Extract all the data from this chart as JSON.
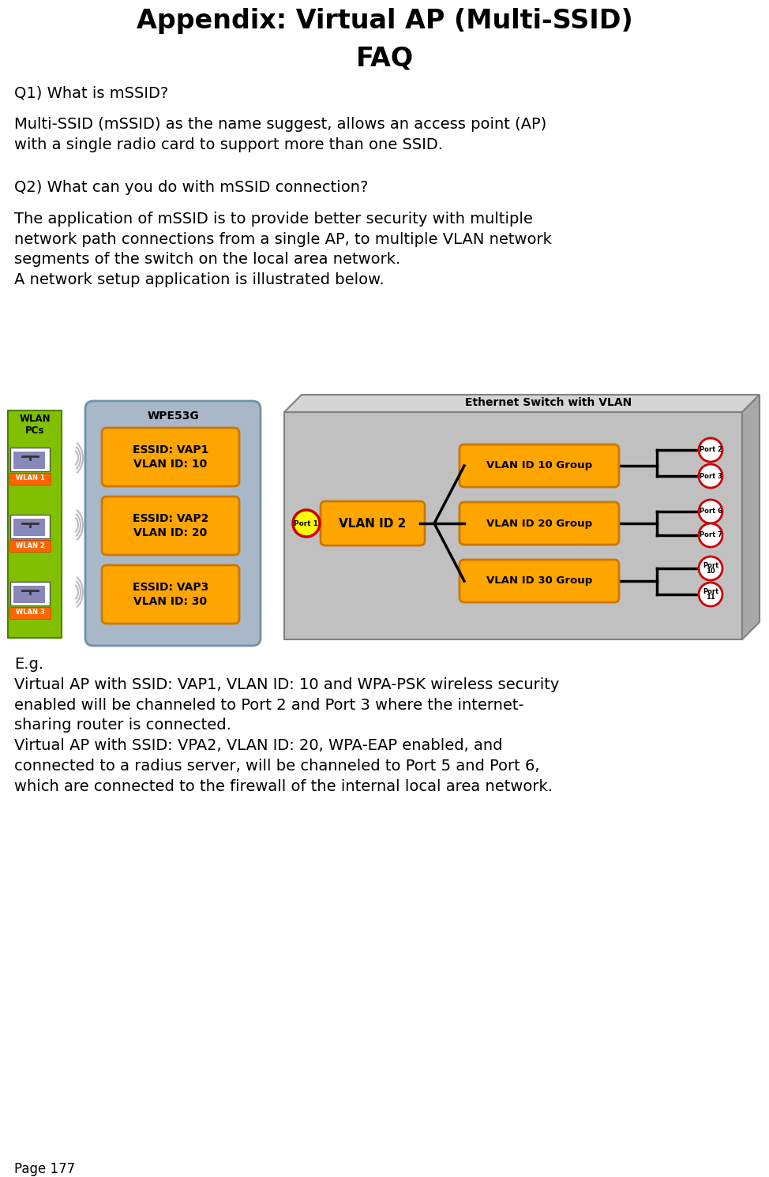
{
  "title_line1": "Appendix: Virtual AP (Multi-SSID)",
  "title_line2": "FAQ",
  "page_number": "Page 177",
  "q1_label": "Q1) What is mSSID?",
  "q1_body": "Multi-SSID (mSSID) as the name suggest, allows an access point (AP)\nwith a single radio card to support more than one SSID.",
  "q2_label": "Q2) What can you do with mSSID connection?",
  "q2_body": "The application of mSSID is to provide better security with multiple\nnetwork path connections from a single AP, to multiple VLAN network\nsegments of the switch on the local area network.\nA network setup application is illustrated below.",
  "eg_text_line1": "E.g.",
  "eg_text_line2": "Virtual AP with SSID: VAP1, VLAN ID: 10 and WPA-PSK wireless security\nenabled will be channeled to Port 2 and Port 3 where the internet-\nsharing router is connected.\nVirtual AP with SSID: VPA2, VLAN ID: 20, WPA-EAP enabled, and\nconnected to a radius server, will be channeled to Port 5 and Port 6,\nwhich are connected to the firewall of the internal local area network.",
  "bg_color": "#ffffff",
  "text_color": "#000000",
  "orange_color": "#FFA500",
  "green_bright": "#80C000",
  "yellow_color": "#FFFF00",
  "red_color": "#CC0000",
  "switch_face": "#C0C0C0",
  "switch_top": "#D5D5D5",
  "switch_right": "#A8A8A8",
  "wp_fill": "#A8B8C8",
  "wp_edge": "#7090A8"
}
